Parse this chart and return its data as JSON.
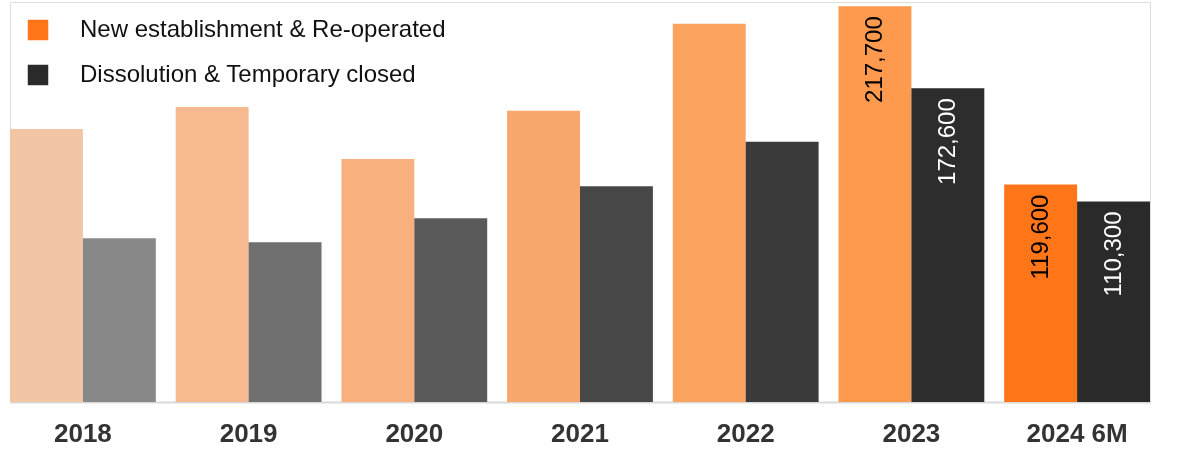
{
  "chart_data": {
    "type": "bar",
    "categories": [
      "2018",
      "2019",
      "2020",
      "2021",
      "2022",
      "2023",
      "2024 6M"
    ],
    "series": [
      {
        "name": "New establishment & Re-operated",
        "color": "#ff7518",
        "colors": [
          "#f2c6a4",
          "#f6b990",
          "#f8b07e",
          "#f9a76c",
          "#fba35f",
          "#fd9a4d",
          "#ff7518"
        ],
        "values": [
          150100,
          162300,
          133600,
          160200,
          208100,
          217700,
          119600
        ],
        "value_labels": [
          null,
          null,
          null,
          null,
          null,
          "217,700",
          "119,600"
        ]
      },
      {
        "name": "Dissolution & Temporary closed",
        "color": "#2a2a2a",
        "colors": [
          "#888888",
          "#6f6f6f",
          "#5a5a5a",
          "#474747",
          "#3a3a3a",
          "#2d2d2d",
          "#2a2a2a"
        ],
        "values": [
          90000,
          87800,
          101100,
          118700,
          143200,
          172600,
          110300
        ],
        "value_labels": [
          null,
          null,
          null,
          null,
          null,
          "172,600",
          "110,300"
        ]
      }
    ],
    "ylim": [
      0,
      220000
    ],
    "tick_labels": "x",
    "legend": "top left",
    "grid": false
  }
}
